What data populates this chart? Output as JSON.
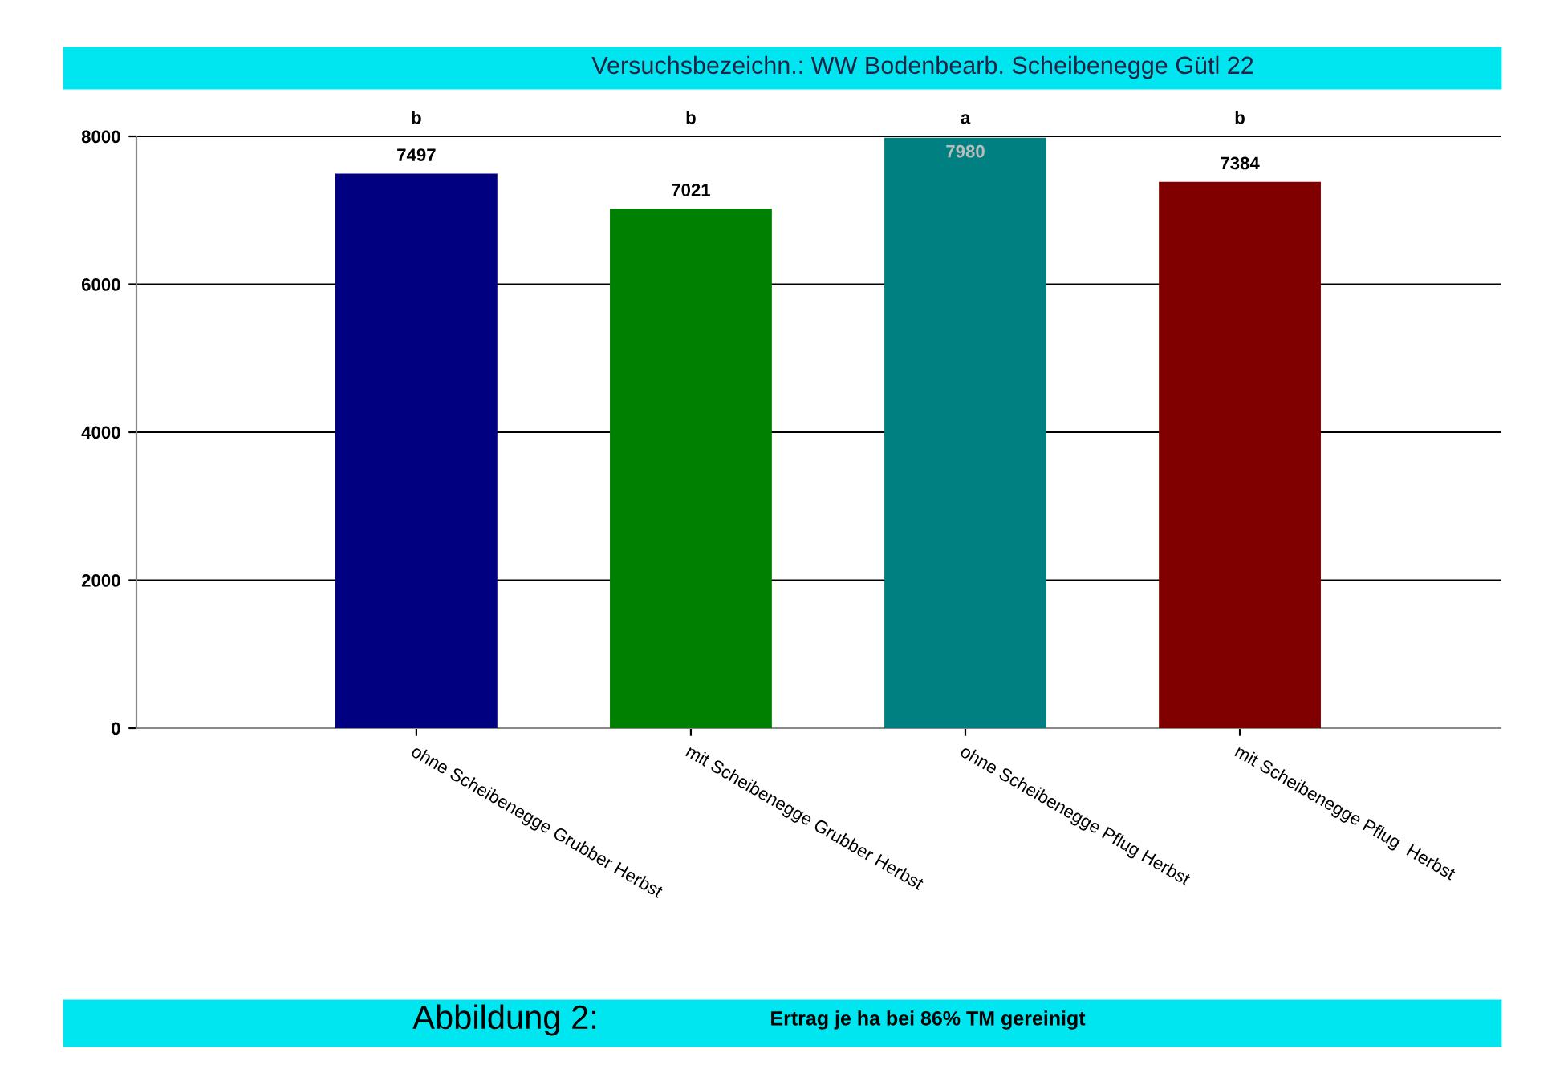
{
  "chart_data": {
    "type": "bar",
    "title": "Versuchsbezeichn.: WW Bodenbearb. Scheibenegge Gütl 22",
    "categories": [
      "ohne Scheibenegge Grubber Herbst",
      "mit Scheibenegge Grubber Herbst",
      "ohne Scheibenegge Pflug Herbst",
      "mit Scheibenegge Pflug  Herbst"
    ],
    "values": [
      7497,
      7021,
      7980,
      7384
    ],
    "colors": [
      "#000080",
      "#008000",
      "#008080",
      "#800000"
    ],
    "ylim": [
      0,
      8000
    ],
    "yticks": [
      0,
      2000,
      4000,
      6000,
      8000
    ],
    "grid": "y",
    "data_labels": true,
    "annotations": [
      "b",
      "b",
      "a",
      "b",
      "Abbildung 2:",
      "Ertrag je ha bei 86% TM gereinigt"
    ]
  }
}
